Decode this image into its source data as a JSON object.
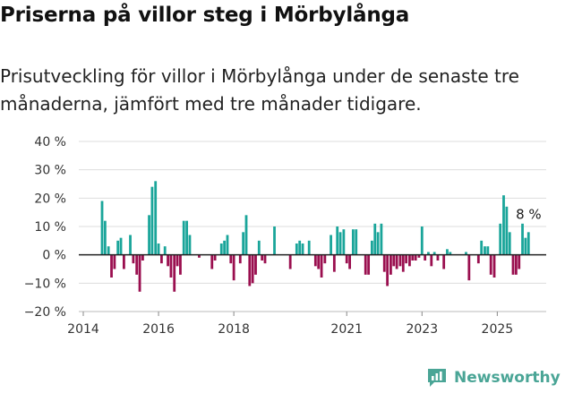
{
  "header": {
    "title": "Priserna på villor steg i Mörbylånga",
    "subtitle": "Prisutveckling för villor i Mörbylånga under de senaste tre månaderna, jämfört med tre månader tidigare."
  },
  "brand": {
    "name": "Newsworthy"
  },
  "colors": {
    "positive": "#1aa59a",
    "negative": "#9a0f4f",
    "grid": "#dddddd",
    "zero": "#222222"
  },
  "chart_data": {
    "type": "bar",
    "title": "Priserna på villor steg i Mörbylånga",
    "xlabel": "",
    "ylabel": "",
    "ylim": [
      -20,
      40
    ],
    "yticks": [
      40,
      30,
      20,
      10,
      0,
      -10,
      -20
    ],
    "ytick_labels": [
      "40 %",
      "30 %",
      "20 %",
      "10 %",
      "0 %",
      "−10 %",
      "−20 %"
    ],
    "xlim": [
      2014.0,
      2026.3
    ],
    "xticks": [
      2014,
      2016,
      2018,
      2021,
      2023,
      2025
    ],
    "xtick_labels": [
      "2014",
      "2016",
      "2018",
      "2021",
      "2023",
      "2025"
    ],
    "annotation": {
      "label": "8 %",
      "x": 2025.85,
      "value": 8
    },
    "x": [
      2014.5,
      2014.58,
      2014.67,
      2014.75,
      2014.83,
      2014.92,
      2015.0,
      2015.08,
      2015.17,
      2015.25,
      2015.33,
      2015.42,
      2015.5,
      2015.58,
      2015.67,
      2015.75,
      2015.83,
      2015.92,
      2016.0,
      2016.08,
      2016.17,
      2016.25,
      2016.33,
      2016.42,
      2016.5,
      2016.58,
      2016.67,
      2016.75,
      2016.83,
      2016.92,
      2017.0,
      2017.08,
      2017.17,
      2017.25,
      2017.33,
      2017.42,
      2017.5,
      2017.58,
      2017.67,
      2017.75,
      2017.83,
      2017.92,
      2018.0,
      2018.08,
      2018.17,
      2018.25,
      2018.33,
      2018.42,
      2018.5,
      2018.58,
      2018.67,
      2018.75,
      2018.83,
      2018.92,
      2019.0,
      2019.08,
      2019.17,
      2019.25,
      2019.33,
      2019.42,
      2019.5,
      2019.58,
      2019.67,
      2019.75,
      2019.83,
      2019.92,
      2020.0,
      2020.08,
      2020.17,
      2020.25,
      2020.33,
      2020.42,
      2020.5,
      2020.58,
      2020.67,
      2020.75,
      2020.83,
      2020.92,
      2021.0,
      2021.08,
      2021.17,
      2021.25,
      2021.33,
      2021.42,
      2021.5,
      2021.58,
      2021.67,
      2021.75,
      2021.83,
      2021.92,
      2022.0,
      2022.08,
      2022.17,
      2022.25,
      2022.33,
      2022.42,
      2022.5,
      2022.58,
      2022.67,
      2022.75,
      2022.83,
      2022.92,
      2023.0,
      2023.08,
      2023.17,
      2023.25,
      2023.33,
      2023.42,
      2023.5,
      2023.58,
      2023.67,
      2023.75,
      2023.83,
      2023.92,
      2024.0,
      2024.08,
      2024.17,
      2024.25,
      2024.33,
      2024.42,
      2024.5,
      2024.58,
      2024.67,
      2024.75,
      2024.83,
      2024.92,
      2025.0,
      2025.08,
      2025.17,
      2025.25,
      2025.33,
      2025.42,
      2025.5,
      2025.58,
      2025.67,
      2025.75,
      2025.83
    ],
    "values": [
      19,
      12,
      3,
      -8,
      -5,
      5,
      6,
      -5,
      0,
      7,
      -3,
      -7,
      -13,
      -2,
      0,
      14,
      24,
      26,
      4,
      -3,
      3,
      -4,
      -8,
      -13,
      -4,
      -7,
      12,
      12,
      7,
      0,
      0,
      -1,
      0,
      0,
      0,
      -5,
      -2,
      0,
      4,
      5,
      7,
      -3,
      -9,
      0,
      -3,
      8,
      14,
      -11,
      -10,
      -7,
      5,
      -2,
      -3,
      0,
      0,
      10,
      0,
      0,
      0,
      0,
      -5,
      0,
      4,
      5,
      4,
      0,
      5,
      0,
      -4,
      -5,
      -8,
      -3,
      0,
      7,
      -6,
      10,
      8,
      9,
      -3,
      -5,
      9,
      9,
      0,
      0,
      -7,
      -7,
      5,
      11,
      8,
      11,
      -6,
      -11,
      -7,
      -4,
      -5,
      -4,
      -6,
      -3,
      -4,
      -2,
      -2,
      -1,
      10,
      -2,
      1,
      -4,
      1,
      -2,
      0,
      -5,
      2,
      1,
      0,
      0,
      0,
      0,
      1,
      -9,
      0,
      0,
      -3,
      5,
      3,
      3,
      -7,
      -8,
      0,
      11,
      21,
      17,
      8,
      -7,
      -7,
      -5,
      11,
      6,
      8
    ]
  }
}
